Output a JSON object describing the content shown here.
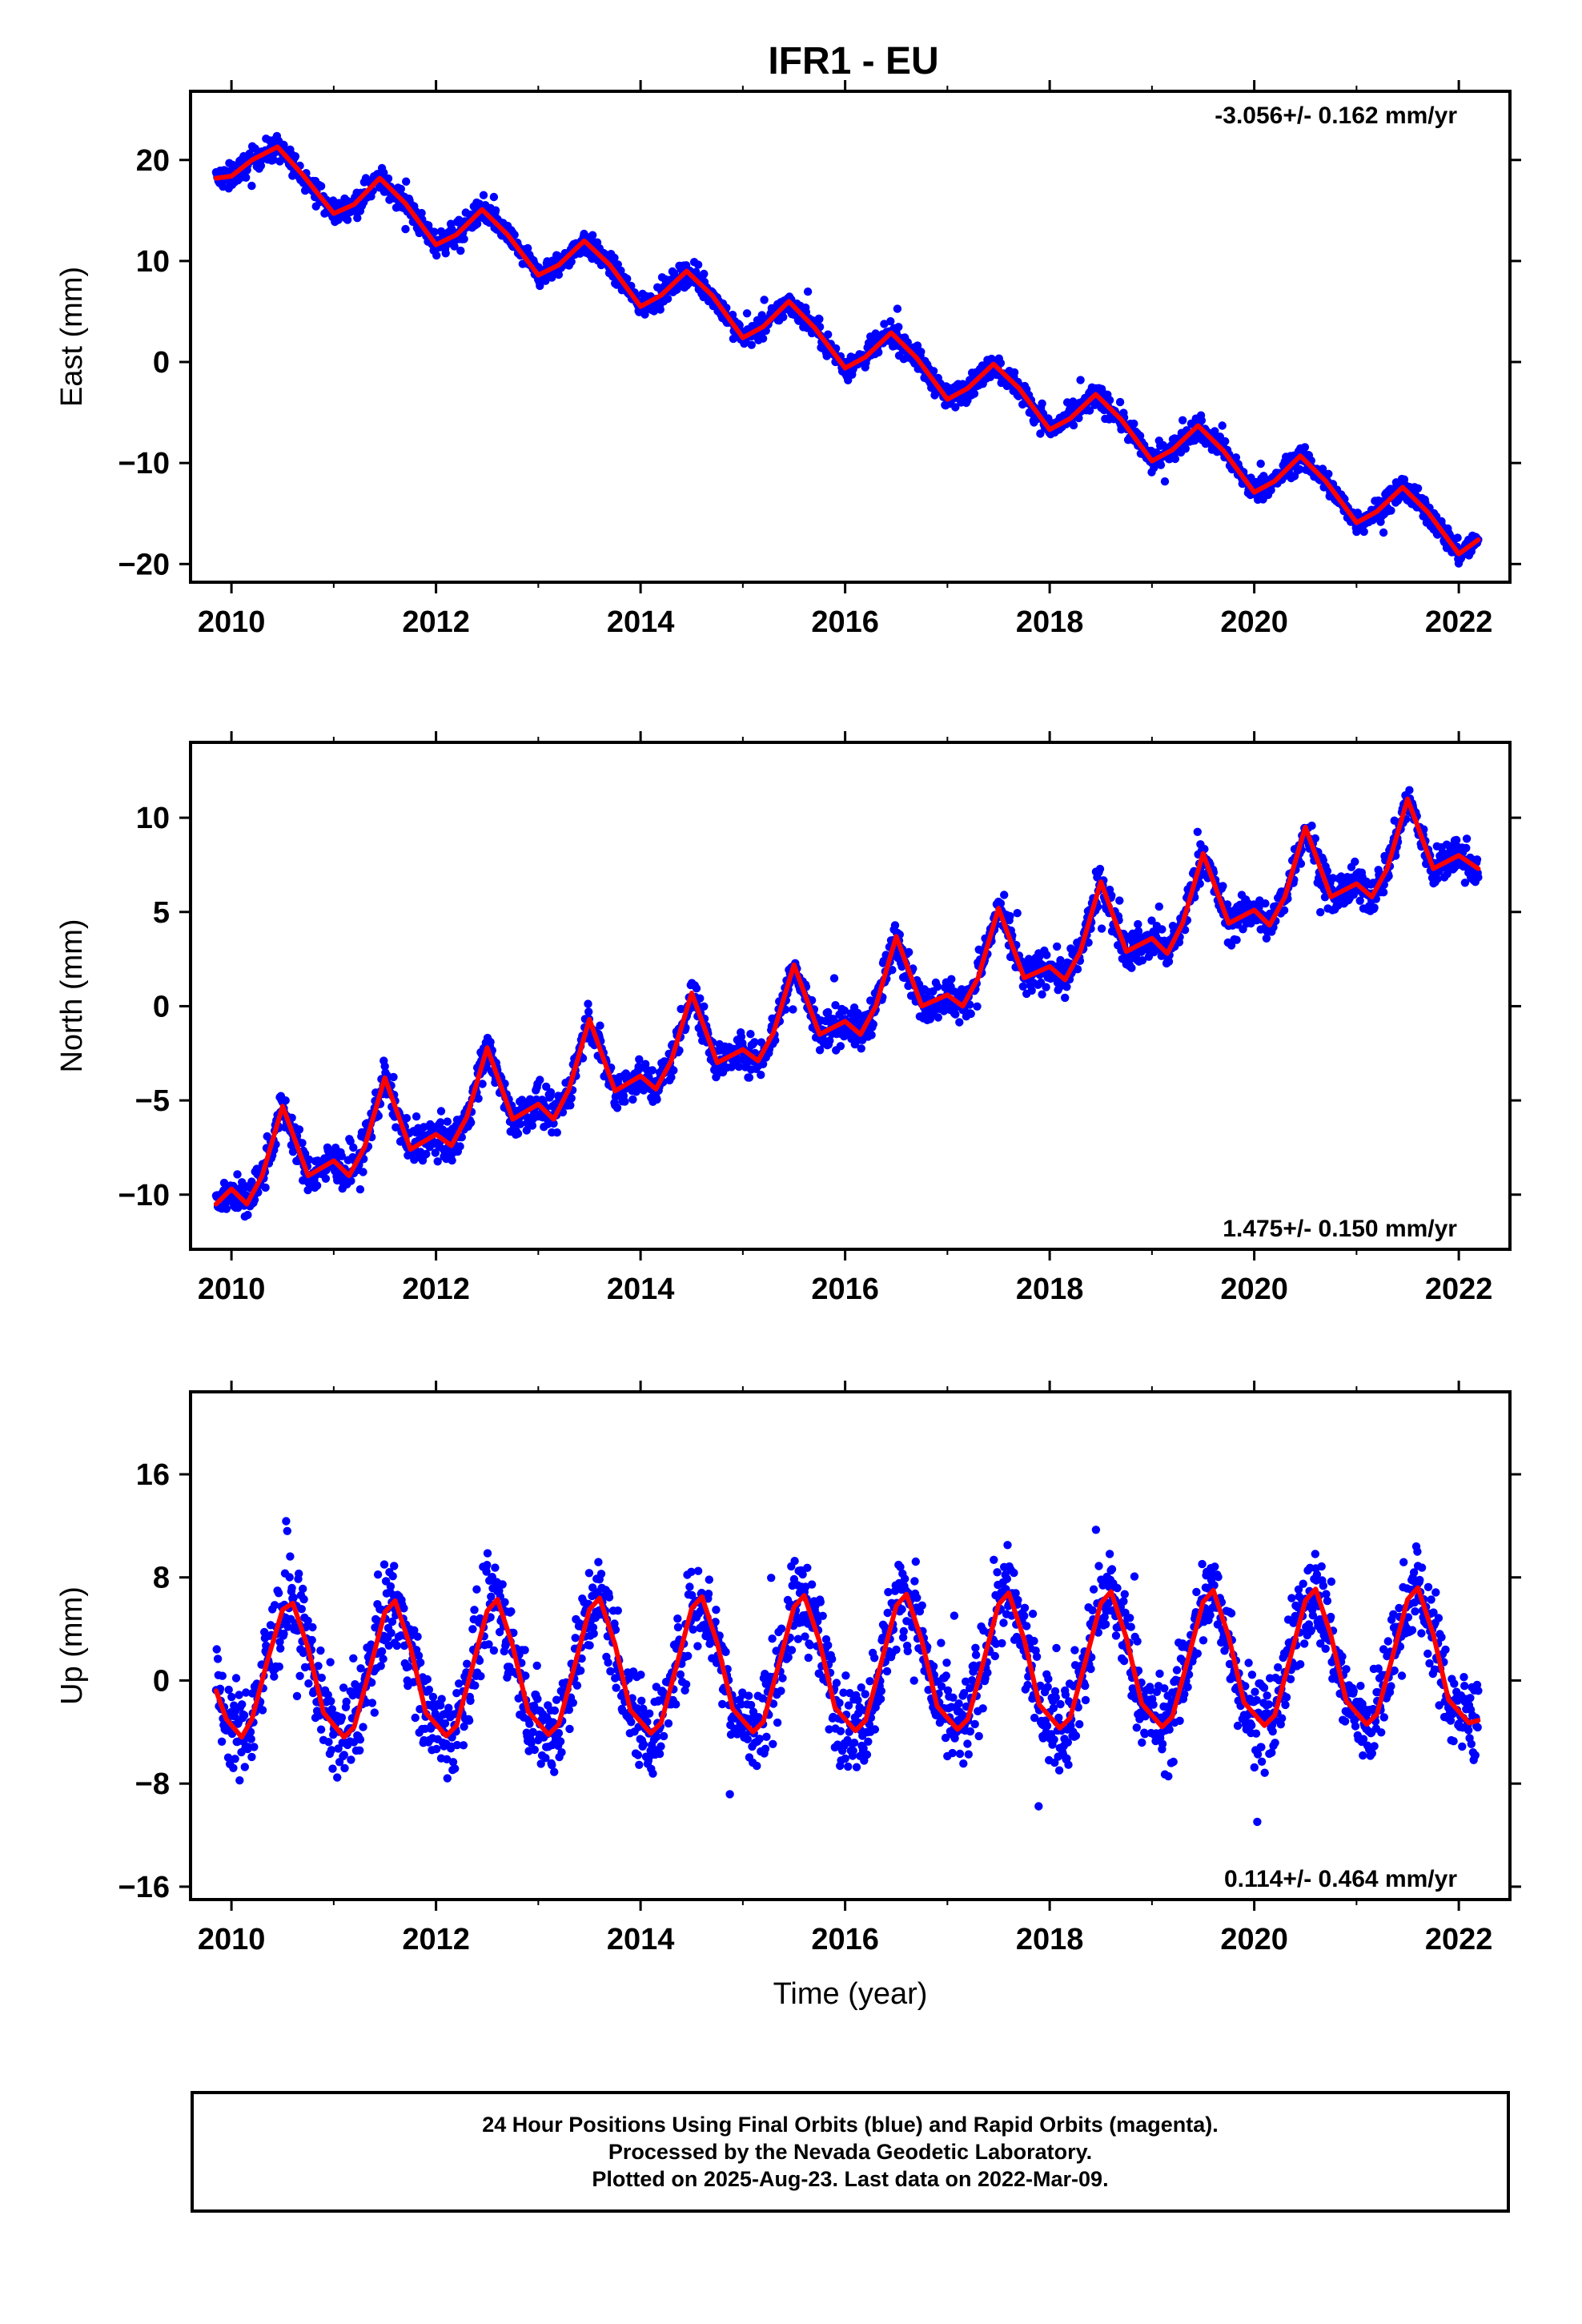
{
  "title": "IFR1 - EU",
  "colors": {
    "points": "#0000ff",
    "fit": "#ff0000",
    "frame": "#000000"
  },
  "chart_data": [
    {
      "type": "scatter",
      "panel": "east",
      "ylabel": "East (mm)",
      "xlabel": "",
      "xlim": [
        2009.6,
        2022.5
      ],
      "ylim": [
        -21.8,
        26.8
      ],
      "x_ticks": [
        2010,
        2012,
        2014,
        2016,
        2018,
        2020,
        2022
      ],
      "y_ticks": [
        20,
        10,
        0,
        -10,
        -20
      ],
      "y_tick_labels": [
        "20",
        "10",
        "0",
        "−10",
        "−20"
      ],
      "rate_label": "-3.056+/- 0.162 mm/yr",
      "rate_position": "top-right",
      "data_start": 2009.85,
      "data_end": 2022.19,
      "fit": {
        "x": [
          2009.85,
          2010.0,
          2010.2,
          2010.45,
          2010.7,
          2011.0,
          2011.2,
          2011.45,
          2011.7,
          2012.0,
          2012.2,
          2012.45,
          2012.7,
          2013.0,
          2013.2,
          2013.45,
          2013.7,
          2014.0,
          2014.2,
          2014.45,
          2014.7,
          2015.0,
          2015.2,
          2015.45,
          2015.7,
          2016.0,
          2016.2,
          2016.45,
          2016.7,
          2017.0,
          2017.2,
          2017.45,
          2017.7,
          2018.0,
          2018.2,
          2018.45,
          2018.7,
          2019.0,
          2019.2,
          2019.45,
          2019.7,
          2020.0,
          2020.2,
          2020.45,
          2020.7,
          2021.0,
          2021.2,
          2021.45,
          2021.7,
          2022.0,
          2022.19
        ],
        "y": [
          18.2,
          18.4,
          20.0,
          21.3,
          18.5,
          14.7,
          15.6,
          18.2,
          15.7,
          11.6,
          12.6,
          15.1,
          12.6,
          8.6,
          9.6,
          12.0,
          9.6,
          5.5,
          6.6,
          9.0,
          6.6,
          2.4,
          3.5,
          6.0,
          3.4,
          -0.6,
          0.5,
          2.9,
          0.4,
          -3.7,
          -2.6,
          -0.2,
          -2.6,
          -6.7,
          -5.6,
          -3.2,
          -5.7,
          -9.8,
          -8.7,
          -6.3,
          -8.8,
          -12.9,
          -11.8,
          -9.3,
          -11.8,
          -15.9,
          -14.8,
          -12.4,
          -14.9,
          -19.0,
          -17.6
        ]
      },
      "scatter_amplitude_mm": 1.5
    },
    {
      "type": "scatter",
      "panel": "north",
      "ylabel": "North (mm)",
      "xlabel": "",
      "xlim": [
        2009.6,
        2022.5
      ],
      "ylim": [
        -12.9,
        14.0
      ],
      "x_ticks": [
        2010,
        2012,
        2014,
        2016,
        2018,
        2020,
        2022
      ],
      "y_ticks": [
        10,
        5,
        0,
        -5,
        -10
      ],
      "y_tick_labels": [
        "10",
        "5",
        "0",
        "−5",
        "−10"
      ],
      "rate_label": "1.475+/- 0.150 mm/yr",
      "rate_position": "bottom-right",
      "data_start": 2009.85,
      "data_end": 2022.19,
      "fit": {
        "x": [
          2009.85,
          2010.0,
          2010.15,
          2010.3,
          2010.5,
          2010.75,
          2011.0,
          2011.15,
          2011.3,
          2011.5,
          2011.75,
          2012.0,
          2012.15,
          2012.3,
          2012.5,
          2012.75,
          2013.0,
          2013.15,
          2013.3,
          2013.5,
          2013.75,
          2014.0,
          2014.15,
          2014.3,
          2014.5,
          2014.75,
          2015.0,
          2015.15,
          2015.3,
          2015.5,
          2015.75,
          2016.0,
          2016.15,
          2016.3,
          2016.5,
          2016.75,
          2017.0,
          2017.15,
          2017.3,
          2017.5,
          2017.75,
          2018.0,
          2018.15,
          2018.3,
          2018.5,
          2018.75,
          2019.0,
          2019.15,
          2019.3,
          2019.5,
          2019.75,
          2020.0,
          2020.15,
          2020.3,
          2020.5,
          2020.75,
          2021.0,
          2021.15,
          2021.3,
          2021.5,
          2021.75,
          2022.0,
          2022.19
        ],
        "y": [
          -10.5,
          -9.7,
          -10.5,
          -9.0,
          -5.3,
          -9.0,
          -8.2,
          -9.0,
          -7.5,
          -3.8,
          -7.6,
          -6.8,
          -7.4,
          -5.9,
          -2.2,
          -6.0,
          -5.2,
          -6.0,
          -4.4,
          -0.7,
          -4.5,
          -3.7,
          -4.4,
          -2.9,
          0.7,
          -3.0,
          -2.3,
          -2.9,
          -1.4,
          2.2,
          -1.5,
          -0.8,
          -1.5,
          0.0,
          3.7,
          0.0,
          0.6,
          0.0,
          1.5,
          5.2,
          1.5,
          2.1,
          1.4,
          2.9,
          6.6,
          2.9,
          3.6,
          2.8,
          4.4,
          8.1,
          4.4,
          5.1,
          4.3,
          5.8,
          9.5,
          5.8,
          6.5,
          5.8,
          7.3,
          11.0,
          7.3,
          8.0,
          7.3
        ]
      },
      "scatter_amplitude_mm": 1.3
    },
    {
      "type": "scatter",
      "panel": "up",
      "ylabel": "Up (mm)",
      "xlabel": "Time (year)",
      "xlim": [
        2009.6,
        2022.5
      ],
      "ylim": [
        -17.0,
        22.4
      ],
      "x_ticks": [
        2010,
        2012,
        2014,
        2016,
        2018,
        2020,
        2022
      ],
      "y_ticks": [
        16,
        8,
        0,
        -8,
        -16
      ],
      "y_tick_labels": [
        "16",
        "8",
        "0",
        "−8",
        "−16"
      ],
      "rate_label": "0.114+/- 0.464 mm/yr",
      "rate_position": "bottom-right",
      "data_start": 2009.85,
      "data_end": 2022.19,
      "fit": {
        "x": [
          2009.85,
          2009.95,
          2010.1,
          2010.2,
          2010.35,
          2010.5,
          2010.6,
          2010.75,
          2010.9,
          2011.1,
          2011.2,
          2011.35,
          2011.5,
          2011.6,
          2011.75,
          2011.9,
          2012.1,
          2012.2,
          2012.35,
          2012.5,
          2012.6,
          2012.75,
          2012.9,
          2013.1,
          2013.2,
          2013.35,
          2013.5,
          2013.6,
          2013.75,
          2013.9,
          2014.1,
          2014.2,
          2014.35,
          2014.5,
          2014.6,
          2014.75,
          2014.9,
          2015.1,
          2015.2,
          2015.35,
          2015.5,
          2015.6,
          2015.75,
          2015.9,
          2016.1,
          2016.2,
          2016.35,
          2016.5,
          2016.6,
          2016.75,
          2016.9,
          2017.1,
          2017.2,
          2017.35,
          2017.5,
          2017.6,
          2017.75,
          2017.9,
          2018.1,
          2018.2,
          2018.35,
          2018.5,
          2018.6,
          2018.75,
          2018.9,
          2019.1,
          2019.2,
          2019.35,
          2019.5,
          2019.6,
          2019.75,
          2019.9,
          2020.1,
          2020.2,
          2020.35,
          2020.5,
          2020.6,
          2020.75,
          2020.9,
          2021.1,
          2021.2,
          2021.35,
          2021.5,
          2021.6,
          2021.75,
          2021.9,
          2022.1,
          2022.19
        ],
        "y": [
          -0.8,
          -3.0,
          -4.4,
          -3.0,
          1.5,
          5.5,
          6.0,
          2.5,
          -2.5,
          -4.4,
          -3.6,
          0.8,
          5.3,
          6.2,
          2.6,
          -2.5,
          -4.3,
          -3.5,
          0.9,
          5.4,
          6.3,
          2.7,
          -2.4,
          -4.2,
          -3.4,
          1.0,
          5.5,
          6.4,
          2.8,
          -2.3,
          -4.1,
          -3.3,
          1.1,
          5.6,
          6.5,
          2.9,
          -2.2,
          -4.0,
          -3.2,
          1.2,
          5.7,
          6.6,
          3.0,
          -2.1,
          -3.9,
          -3.1,
          1.3,
          5.8,
          6.7,
          3.1,
          -2.0,
          -3.8,
          -3.0,
          1.4,
          5.9,
          6.8,
          3.2,
          -1.9,
          -3.7,
          -2.9,
          1.5,
          6.0,
          6.9,
          3.3,
          -1.8,
          -3.6,
          -2.8,
          1.6,
          6.1,
          7.0,
          3.4,
          -1.7,
          -3.5,
          -2.7,
          1.7,
          6.2,
          7.1,
          3.5,
          -1.6,
          -3.4,
          -2.6,
          1.8,
          6.3,
          7.2,
          3.6,
          -1.5,
          -3.3,
          -3.1
        ]
      },
      "scatter_amplitude_mm": 4.5
    }
  ],
  "footer": {
    "line1": "24 Hour Positions Using Final Orbits (blue) and Rapid Orbits (magenta).",
    "line2": "Processed by the Nevada Geodetic Laboratory.",
    "line3": "Plotted on 2025-Aug-23. Last data on 2022-Mar-09."
  }
}
